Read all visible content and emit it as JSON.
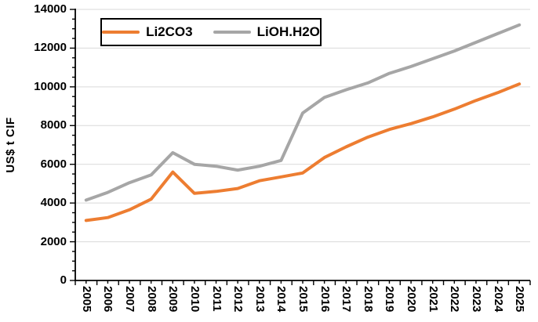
{
  "chart_data": {
    "type": "line",
    "title": "",
    "ylabel": "US$ t CIF",
    "xlabel": "",
    "ylim": [
      0,
      14000
    ],
    "ytick_interval": 2000,
    "ytick_minor_interval": 500,
    "grid": "horizontal",
    "gridline_color": "#d9d9d9",
    "axis_color": "#000000",
    "background": "#ffffff",
    "legend_position": "top-inside",
    "categories": [
      "2005",
      "2006",
      "2007",
      "2008",
      "2009",
      "2010",
      "2011",
      "2012",
      "2013",
      "2014",
      "2015",
      "2016",
      "2017",
      "2018",
      "2019",
      "2020",
      "2021",
      "2022",
      "2023",
      "2024",
      "2025"
    ],
    "series": [
      {
        "name": "Li2CO3",
        "color": "#ED7D31",
        "values": [
          3100,
          3250,
          3650,
          4200,
          5600,
          4500,
          4600,
          4750,
          5150,
          5350,
          5550,
          6350,
          6900,
          7400,
          7800,
          8100,
          8450,
          8850,
          9300,
          9700,
          10150
        ]
      },
      {
        "name": "LiOH.H2O",
        "color": "#A6A6A6",
        "values": [
          4150,
          4550,
          5050,
          5450,
          6600,
          6000,
          5900,
          5700,
          5900,
          6200,
          8650,
          9450,
          9850,
          10200,
          10700,
          11050,
          11450,
          11850,
          12300,
          12750,
          13200
        ]
      }
    ]
  }
}
